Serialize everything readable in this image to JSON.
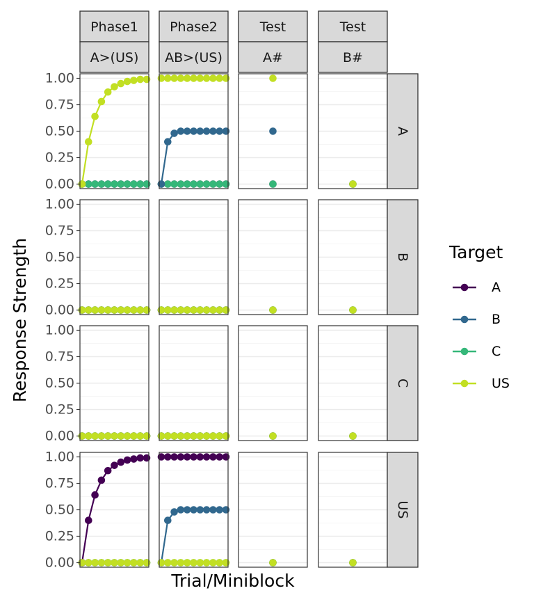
{
  "chart_data": {
    "type": "line",
    "col_strips": [
      [
        "Phase1",
        "A>(US)"
      ],
      [
        "Phase2",
        "AB>(US)"
      ],
      [
        "Test",
        "A#"
      ],
      [
        "Test",
        "B#"
      ]
    ],
    "row_strips": [
      "A",
      "B",
      "C",
      "US"
    ],
    "xlabel": "Trial/Miniblock",
    "ylabel": "Response Strength",
    "ylim": [
      0,
      1
    ],
    "yticks": [
      "0.00",
      "0.25",
      "0.50",
      "0.75",
      "1.00"
    ],
    "y_tick_values": [
      0,
      0.25,
      0.5,
      0.75,
      1
    ],
    "grid": true,
    "legend": {
      "title": "Target",
      "position": "right",
      "entries": [
        {
          "name": "A",
          "color": "#440154"
        },
        {
          "name": "B",
          "color": "#31688e"
        },
        {
          "name": "C",
          "color": "#35b779"
        },
        {
          "name": "US",
          "color": "#c2df23"
        }
      ]
    },
    "panels": [
      {
        "row": "A",
        "col": 0,
        "series": [
          {
            "name": "A",
            "values": [
              0,
              0,
              0,
              0,
              0,
              0,
              0,
              0,
              0,
              0,
              0
            ]
          },
          {
            "name": "B",
            "values": [
              0,
              0,
              0,
              0,
              0,
              0,
              0,
              0,
              0,
              0,
              0
            ]
          },
          {
            "name": "C",
            "values": [
              0,
              0,
              0,
              0,
              0,
              0,
              0,
              0,
              0,
              0,
              0
            ]
          },
          {
            "name": "US",
            "values": [
              0,
              0.4,
              0.64,
              0.78,
              0.87,
              0.92,
              0.95,
              0.97,
              0.98,
              0.99,
              0.99
            ]
          }
        ]
      },
      {
        "row": "A",
        "col": 1,
        "series": [
          {
            "name": "A",
            "values": [
              0,
              0,
              0,
              0,
              0,
              0,
              0,
              0,
              0,
              0,
              0
            ]
          },
          {
            "name": "C",
            "values": [
              0,
              0,
              0,
              0,
              0,
              0,
              0,
              0,
              0,
              0,
              0
            ]
          },
          {
            "name": "B",
            "values": [
              0,
              0.4,
              0.48,
              0.5,
              0.5,
              0.5,
              0.5,
              0.5,
              0.5,
              0.5,
              0.5
            ]
          },
          {
            "name": "US",
            "values": [
              1,
              1,
              1,
              1,
              1,
              1,
              1,
              1,
              1,
              1,
              1
            ]
          }
        ]
      },
      {
        "row": "A",
        "col": 2,
        "series": [
          {
            "name": "A",
            "values": [
              0
            ]
          },
          {
            "name": "C",
            "values": [
              0
            ]
          },
          {
            "name": "B",
            "values": [
              0.5
            ]
          },
          {
            "name": "US",
            "values": [
              1
            ]
          }
        ]
      },
      {
        "row": "A",
        "col": 3,
        "series": [
          {
            "name": "A",
            "values": [
              0
            ]
          },
          {
            "name": "B",
            "values": [
              0
            ]
          },
          {
            "name": "C",
            "values": [
              0
            ]
          },
          {
            "name": "US",
            "values": [
              0
            ]
          }
        ]
      },
      {
        "row": "B",
        "col": 0,
        "series": [
          {
            "name": "A",
            "values": [
              0,
              0,
              0,
              0,
              0,
              0,
              0,
              0,
              0,
              0,
              0
            ]
          },
          {
            "name": "B",
            "values": [
              0,
              0,
              0,
              0,
              0,
              0,
              0,
              0,
              0,
              0,
              0
            ]
          },
          {
            "name": "C",
            "values": [
              0,
              0,
              0,
              0,
              0,
              0,
              0,
              0,
              0,
              0,
              0
            ]
          },
          {
            "name": "US",
            "values": [
              0,
              0,
              0,
              0,
              0,
              0,
              0,
              0,
              0,
              0,
              0
            ]
          }
        ]
      },
      {
        "row": "B",
        "col": 1,
        "series": [
          {
            "name": "A",
            "values": [
              0,
              0,
              0,
              0,
              0,
              0,
              0,
              0,
              0,
              0,
              0
            ]
          },
          {
            "name": "B",
            "values": [
              0,
              0,
              0,
              0,
              0,
              0,
              0,
              0,
              0,
              0,
              0
            ]
          },
          {
            "name": "C",
            "values": [
              0,
              0,
              0,
              0,
              0,
              0,
              0,
              0,
              0,
              0,
              0
            ]
          },
          {
            "name": "US",
            "values": [
              0,
              0,
              0,
              0,
              0,
              0,
              0,
              0,
              0,
              0,
              0
            ]
          }
        ]
      },
      {
        "row": "B",
        "col": 2,
        "series": [
          {
            "name": "A",
            "values": [
              0
            ]
          },
          {
            "name": "B",
            "values": [
              0
            ]
          },
          {
            "name": "C",
            "values": [
              0
            ]
          },
          {
            "name": "US",
            "values": [
              0
            ]
          }
        ]
      },
      {
        "row": "B",
        "col": 3,
        "series": [
          {
            "name": "A",
            "values": [
              0
            ]
          },
          {
            "name": "B",
            "values": [
              0
            ]
          },
          {
            "name": "C",
            "values": [
              0
            ]
          },
          {
            "name": "US",
            "values": [
              0
            ]
          }
        ]
      },
      {
        "row": "C",
        "col": 0,
        "series": [
          {
            "name": "A",
            "values": [
              0,
              0,
              0,
              0,
              0,
              0,
              0,
              0,
              0,
              0,
              0
            ]
          },
          {
            "name": "B",
            "values": [
              0,
              0,
              0,
              0,
              0,
              0,
              0,
              0,
              0,
              0,
              0
            ]
          },
          {
            "name": "C",
            "values": [
              0,
              0,
              0,
              0,
              0,
              0,
              0,
              0,
              0,
              0,
              0
            ]
          },
          {
            "name": "US",
            "values": [
              0,
              0,
              0,
              0,
              0,
              0,
              0,
              0,
              0,
              0,
              0
            ]
          }
        ]
      },
      {
        "row": "C",
        "col": 1,
        "series": [
          {
            "name": "A",
            "values": [
              0,
              0,
              0,
              0,
              0,
              0,
              0,
              0,
              0,
              0,
              0
            ]
          },
          {
            "name": "B",
            "values": [
              0,
              0,
              0,
              0,
              0,
              0,
              0,
              0,
              0,
              0,
              0
            ]
          },
          {
            "name": "C",
            "values": [
              0,
              0,
              0,
              0,
              0,
              0,
              0,
              0,
              0,
              0,
              0
            ]
          },
          {
            "name": "US",
            "values": [
              0,
              0,
              0,
              0,
              0,
              0,
              0,
              0,
              0,
              0,
              0
            ]
          }
        ]
      },
      {
        "row": "C",
        "col": 2,
        "series": [
          {
            "name": "A",
            "values": [
              0
            ]
          },
          {
            "name": "B",
            "values": [
              0
            ]
          },
          {
            "name": "C",
            "values": [
              0
            ]
          },
          {
            "name": "US",
            "values": [
              0
            ]
          }
        ]
      },
      {
        "row": "C",
        "col": 3,
        "series": [
          {
            "name": "A",
            "values": [
              0
            ]
          },
          {
            "name": "B",
            "values": [
              0
            ]
          },
          {
            "name": "C",
            "values": [
              0
            ]
          },
          {
            "name": "US",
            "values": [
              0
            ]
          }
        ]
      },
      {
        "row": "US",
        "col": 0,
        "series": [
          {
            "name": "B",
            "values": [
              0,
              0,
              0,
              0,
              0,
              0,
              0,
              0,
              0,
              0,
              0
            ]
          },
          {
            "name": "C",
            "values": [
              0,
              0,
              0,
              0,
              0,
              0,
              0,
              0,
              0,
              0,
              0
            ]
          },
          {
            "name": "A",
            "values": [
              0,
              0.4,
              0.64,
              0.78,
              0.87,
              0.92,
              0.95,
              0.97,
              0.98,
              0.99,
              0.99
            ]
          },
          {
            "name": "US",
            "values": [
              0,
              0,
              0,
              0,
              0,
              0,
              0,
              0,
              0,
              0,
              0
            ]
          }
        ]
      },
      {
        "row": "US",
        "col": 1,
        "series": [
          {
            "name": "C",
            "values": [
              0,
              0,
              0,
              0,
              0,
              0,
              0,
              0,
              0,
              0,
              0
            ]
          },
          {
            "name": "A",
            "values": [
              1,
              1,
              1,
              1,
              1,
              1,
              1,
              1,
              1,
              1,
              1
            ]
          },
          {
            "name": "B",
            "values": [
              0,
              0.4,
              0.48,
              0.5,
              0.5,
              0.5,
              0.5,
              0.5,
              0.5,
              0.5,
              0.5
            ]
          },
          {
            "name": "US",
            "values": [
              0,
              0,
              0,
              0,
              0,
              0,
              0,
              0,
              0,
              0,
              0
            ]
          }
        ]
      },
      {
        "row": "US",
        "col": 2,
        "series": [
          {
            "name": "A",
            "values": [
              0
            ]
          },
          {
            "name": "B",
            "values": [
              0
            ]
          },
          {
            "name": "C",
            "values": [
              0
            ]
          },
          {
            "name": "US",
            "values": [
              0
            ]
          }
        ]
      },
      {
        "row": "US",
        "col": 3,
        "series": [
          {
            "name": "A",
            "values": [
              0
            ]
          },
          {
            "name": "B",
            "values": [
              0
            ]
          },
          {
            "name": "C",
            "values": [
              0
            ]
          },
          {
            "name": "US",
            "values": [
              0
            ]
          }
        ]
      }
    ]
  }
}
